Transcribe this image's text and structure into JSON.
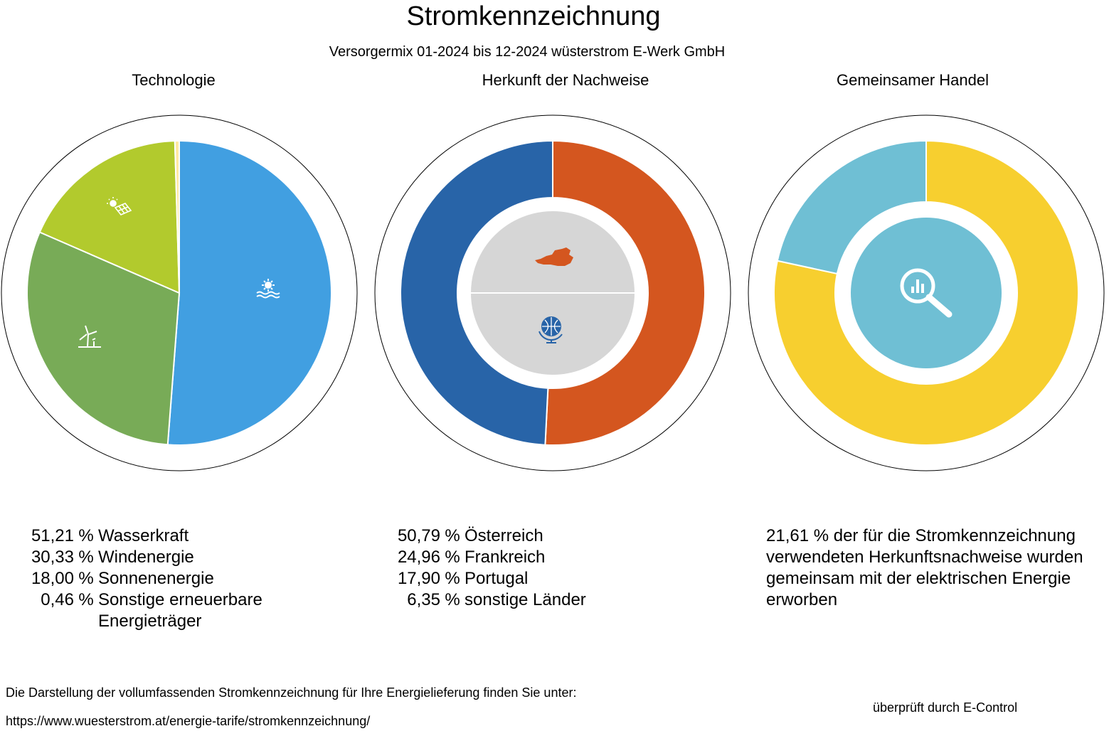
{
  "header": {
    "title": "Stromkennzeichnung",
    "subtitle": "Versorgermix 01-2024 bis 12-2024 wüsterstrom E-Werk GmbH"
  },
  "colors": {
    "wasserkraft": "#419fe1",
    "windenergie": "#78ab57",
    "sonnenenergie": "#b2ca2d",
    "sonstige_erneuerbar": "#ffe9a0",
    "oesterreich": "#d4561f",
    "ausland": "#2864a8",
    "gemeinsam": "#6fbfd4",
    "nicht_gemeinsam": "#f7cf2f",
    "center_grey": "#d6d6d6"
  },
  "chart_data": [
    {
      "type": "pie",
      "title": "Technologie",
      "slices": [
        {
          "label": "Wasserkraft",
          "value": 51.21,
          "value_text": "51,21",
          "color": "#419fe1",
          "icon": "water-sun-icon"
        },
        {
          "label": "Windenergie",
          "value": 30.33,
          "value_text": "30,33",
          "color": "#78ab57",
          "icon": "wind-turbine-icon"
        },
        {
          "label": "Sonnenenergie",
          "value": 18.0,
          "value_text": "18,00",
          "color": "#b2ca2d",
          "icon": "solar-panel-icon"
        },
        {
          "label": "Sonstige erneuerbare Energieträger",
          "value": 0.46,
          "value_text": "0,46",
          "color": "#ffe9a0",
          "icon": ""
        }
      ]
    },
    {
      "type": "pie",
      "title": "Herkunft der Nachweise",
      "slices": [
        {
          "label": "Österreich",
          "value": 50.79,
          "value_text": "50,79",
          "color": "#d4561f",
          "icon": "austria-map-icon"
        },
        {
          "label": "Frankreich",
          "value": 24.96,
          "value_text": "24,96",
          "color": "#2864a8",
          "icon": "globe-icon"
        },
        {
          "label": "Portugal",
          "value": 17.9,
          "value_text": "17,90",
          "color": "#2864a8",
          "icon": "globe-icon"
        },
        {
          "label": "sonstige Länder",
          "value": 6.35,
          "value_text": "6,35",
          "color": "#2864a8",
          "icon": "globe-icon"
        }
      ]
    },
    {
      "type": "pie",
      "title": "Gemeinsamer Handel",
      "slices": [
        {
          "label": "gemeinsam erworben",
          "value": 21.61,
          "value_text": "21,61",
          "color": "#6fbfd4",
          "icon": "magnifier-chart-icon"
        },
        {
          "label": "",
          "value": 78.39,
          "color": "#f7cf2f",
          "icon": ""
        }
      ],
      "text": "21,61 % der für die Stromkennzeichnung verwendeten Herkunftsnachweise wurden gemeinsam mit der elektrischen Energie erworben"
    }
  ],
  "legend_unit": "%",
  "footer": {
    "note": "Die Darstellung der vollumfassenden Stromkennzeichnung für Ihre Energielieferung finden Sie unter:",
    "url": "https://www.wuesterstrom.at/energie-tarife/stromkennzeichnung/",
    "verified": "überprüft durch E-Control"
  }
}
